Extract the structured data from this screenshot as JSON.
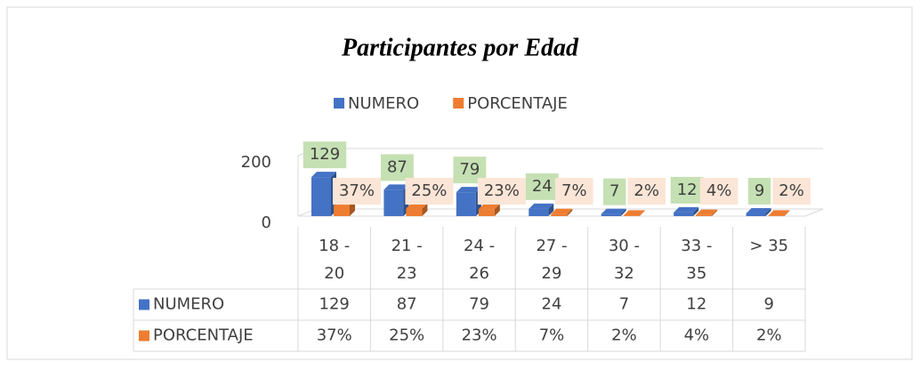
{
  "chart_data": {
    "type": "bar3d",
    "title": "Participantes por Edad",
    "categories": [
      "18 - 20",
      "21 - 23",
      "24 - 26",
      "27 - 29",
      "30 - 32",
      "33 - 35",
      "> 35"
    ],
    "series": [
      {
        "name": "NUMERO",
        "color": "#4472c4",
        "values": [
          129,
          87,
          79,
          24,
          7,
          12,
          9
        ]
      },
      {
        "name": "PORCENTAJE",
        "color": "#ed7d31",
        "values": [
          37,
          25,
          23,
          7,
          2,
          4,
          2
        ],
        "value_labels": [
          "37%",
          "25%",
          "23%",
          "7%",
          "2%",
          "4%",
          "2%"
        ]
      }
    ],
    "ylim": [
      0,
      200
    ],
    "yticks": [
      0,
      200
    ],
    "grid": true,
    "legend": "top",
    "data_table": true
  }
}
